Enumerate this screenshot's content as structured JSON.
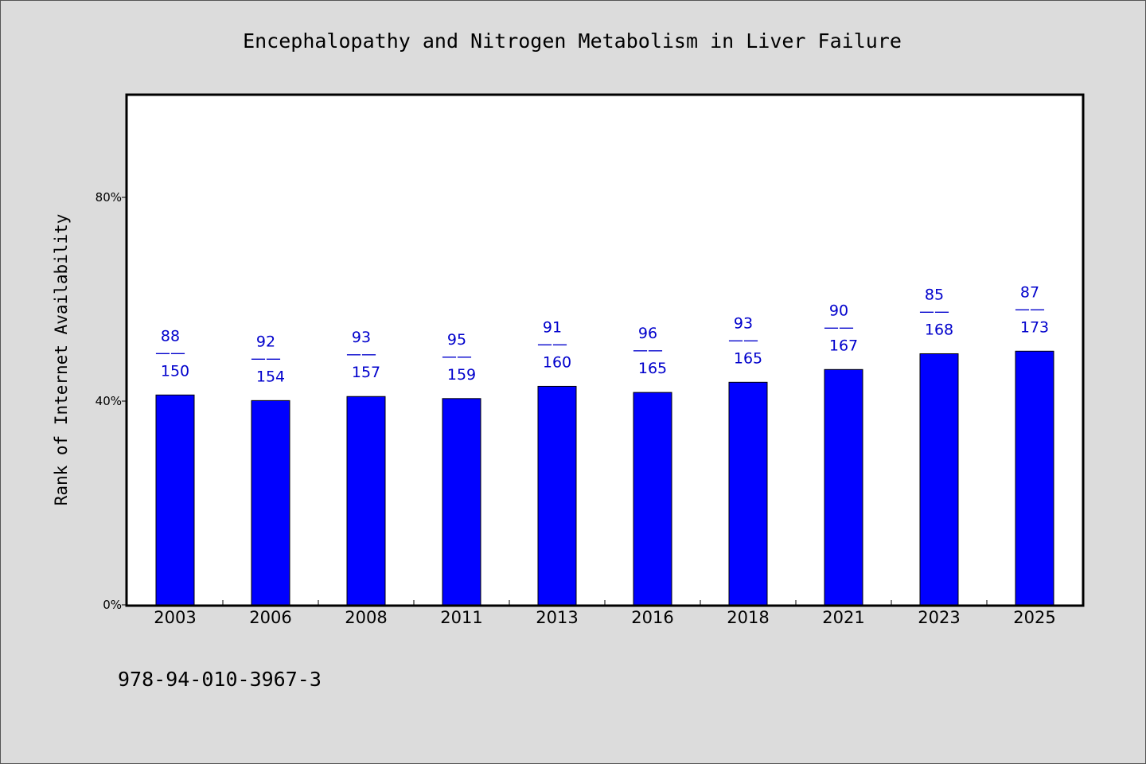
{
  "chart_data": {
    "type": "bar",
    "title": "Encephalopathy and Nitrogen Metabolism in Liver Failure",
    "xlabel": "",
    "ylabel": "Rank of Internet Availability",
    "categories": [
      "2003",
      "2006",
      "2008",
      "2011",
      "2013",
      "2016",
      "2018",
      "2021",
      "2023",
      "2025"
    ],
    "values": [
      41.2,
      40.1,
      40.9,
      40.5,
      42.9,
      41.7,
      43.7,
      46.2,
      49.3,
      49.8
    ],
    "numerators": [
      "88",
      "92",
      "93",
      "95",
      "91",
      "96",
      "93",
      "90",
      "85",
      "87"
    ],
    "denominators": [
      "150",
      "154",
      "157",
      "159",
      "160",
      "165",
      "165",
      "167",
      "168",
      "173"
    ],
    "label_separator": "——",
    "ylim": [
      0,
      100
    ],
    "yticks": [
      0,
      40,
      80
    ],
    "ytick_labels": [
      "0%",
      "40%",
      "80%"
    ],
    "grid": false,
    "legend": "none",
    "bar_color": "#0000ff",
    "label_color": "#0000cc"
  },
  "footer": {
    "isbn": "978-94-010-3967-3"
  }
}
